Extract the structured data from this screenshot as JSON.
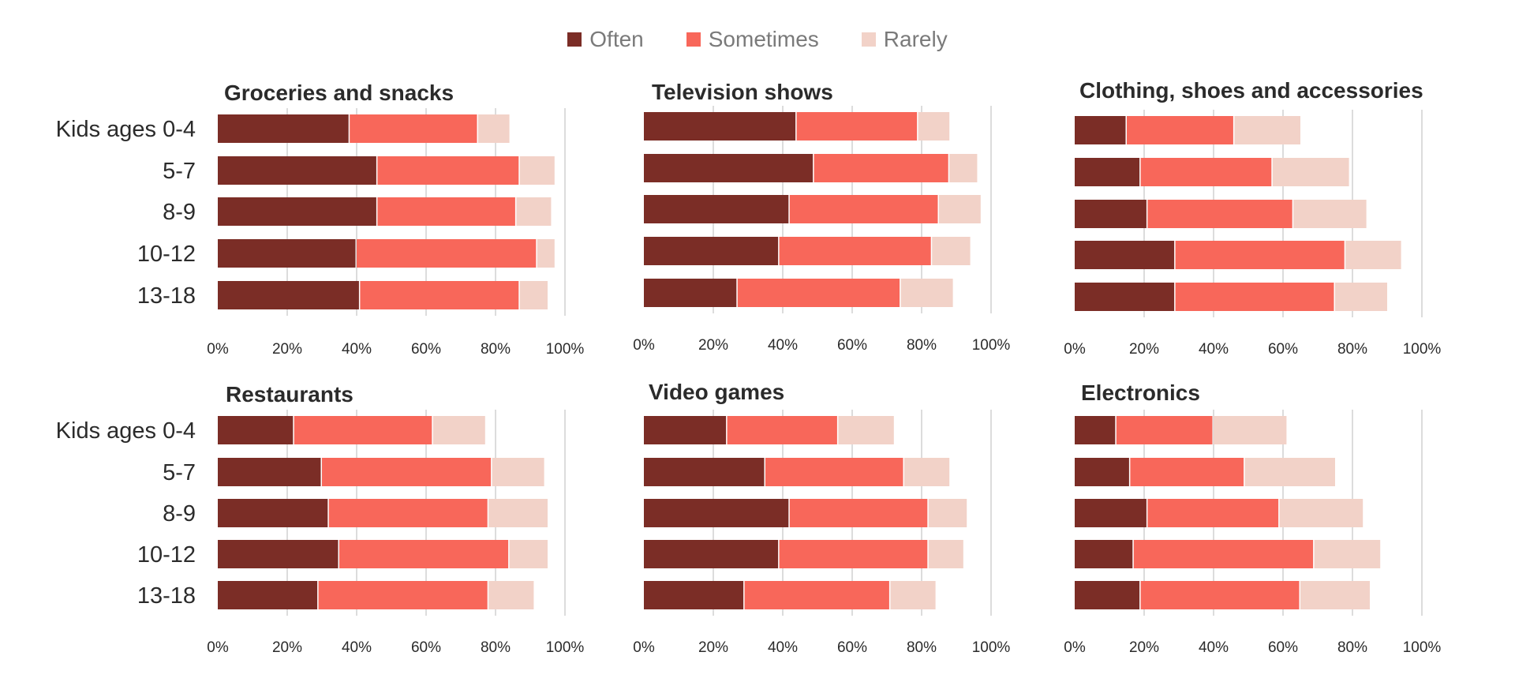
{
  "legend": [
    {
      "label": "Often",
      "color": "#7b2d26"
    },
    {
      "label": "Sometimes",
      "color": "#f8675a"
    },
    {
      "label": "Rarely",
      "color": "#f2d2c8"
    }
  ],
  "chart_data": [
    {
      "type": "bar",
      "stacked": true,
      "orientation": "horizontal",
      "title": "Groceries and snacks",
      "categories": [
        "Kids ages 0-4",
        "5-7",
        "8-9",
        "10-12",
        "13-18"
      ],
      "series": [
        {
          "name": "Often",
          "values": [
            38,
            46,
            46,
            40,
            41
          ]
        },
        {
          "name": "Sometimes",
          "values": [
            37,
            41,
            40,
            52,
            46
          ]
        },
        {
          "name": "Rarely",
          "values": [
            9,
            10,
            10,
            5,
            8
          ]
        }
      ],
      "xticks": [
        "0%",
        "20%",
        "40%",
        "60%",
        "80%",
        "100%"
      ],
      "xlim": [
        0,
        100
      ]
    },
    {
      "type": "bar",
      "stacked": true,
      "orientation": "horizontal",
      "title": "Television shows",
      "categories": [
        "Kids ages 0-4",
        "5-7",
        "8-9",
        "10-12",
        "13-18"
      ],
      "series": [
        {
          "name": "Often",
          "values": [
            44,
            49,
            42,
            39,
            27
          ]
        },
        {
          "name": "Sometimes",
          "values": [
            35,
            39,
            43,
            44,
            47
          ]
        },
        {
          "name": "Rarely",
          "values": [
            9,
            8,
            12,
            11,
            15
          ]
        }
      ],
      "xticks": [
        "0%",
        "20%",
        "40%",
        "60%",
        "80%",
        "100%"
      ],
      "xlim": [
        0,
        100
      ]
    },
    {
      "type": "bar",
      "stacked": true,
      "orientation": "horizontal",
      "title": "Clothing, shoes and accessories",
      "categories": [
        "Kids ages 0-4",
        "5-7",
        "8-9",
        "10-12",
        "13-18"
      ],
      "series": [
        {
          "name": "Often",
          "values": [
            15,
            19,
            21,
            29,
            29
          ]
        },
        {
          "name": "Sometimes",
          "values": [
            31,
            38,
            42,
            49,
            46
          ]
        },
        {
          "name": "Rarely",
          "values": [
            19,
            22,
            21,
            16,
            15
          ]
        }
      ],
      "xticks": [
        "0%",
        "20%",
        "40%",
        "60%",
        "80%",
        "100%"
      ],
      "xlim": [
        0,
        100
      ]
    },
    {
      "type": "bar",
      "stacked": true,
      "orientation": "horizontal",
      "title": "Restaurants",
      "categories": [
        "Kids ages 0-4",
        "5-7",
        "8-9",
        "10-12",
        "13-18"
      ],
      "series": [
        {
          "name": "Often",
          "values": [
            22,
            30,
            32,
            35,
            29
          ]
        },
        {
          "name": "Sometimes",
          "values": [
            40,
            49,
            46,
            49,
            49
          ]
        },
        {
          "name": "Rarely",
          "values": [
            15,
            15,
            17,
            11,
            13
          ]
        }
      ],
      "xticks": [
        "0%",
        "20%",
        "40%",
        "60%",
        "80%",
        "100%"
      ],
      "xlim": [
        0,
        100
      ]
    },
    {
      "type": "bar",
      "stacked": true,
      "orientation": "horizontal",
      "title": "Video games",
      "categories": [
        "Kids ages 0-4",
        "5-7",
        "8-9",
        "10-12",
        "13-18"
      ],
      "series": [
        {
          "name": "Often",
          "values": [
            24,
            35,
            42,
            39,
            29
          ]
        },
        {
          "name": "Sometimes",
          "values": [
            32,
            40,
            40,
            43,
            42
          ]
        },
        {
          "name": "Rarely",
          "values": [
            16,
            13,
            11,
            10,
            13
          ]
        }
      ],
      "xticks": [
        "0%",
        "20%",
        "40%",
        "60%",
        "80%",
        "100%"
      ],
      "xlim": [
        0,
        100
      ]
    },
    {
      "type": "bar",
      "stacked": true,
      "orientation": "horizontal",
      "title": "Electronics",
      "categories": [
        "Kids ages 0-4",
        "5-7",
        "8-9",
        "10-12",
        "13-18"
      ],
      "series": [
        {
          "name": "Often",
          "values": [
            12,
            16,
            21,
            17,
            19
          ]
        },
        {
          "name": "Sometimes",
          "values": [
            28,
            33,
            38,
            52,
            46
          ]
        },
        {
          "name": "Rarely",
          "values": [
            21,
            26,
            24,
            19,
            20
          ]
        }
      ],
      "xticks": [
        "0%",
        "20%",
        "40%",
        "60%",
        "80%",
        "100%"
      ],
      "xlim": [
        0,
        100
      ]
    }
  ]
}
